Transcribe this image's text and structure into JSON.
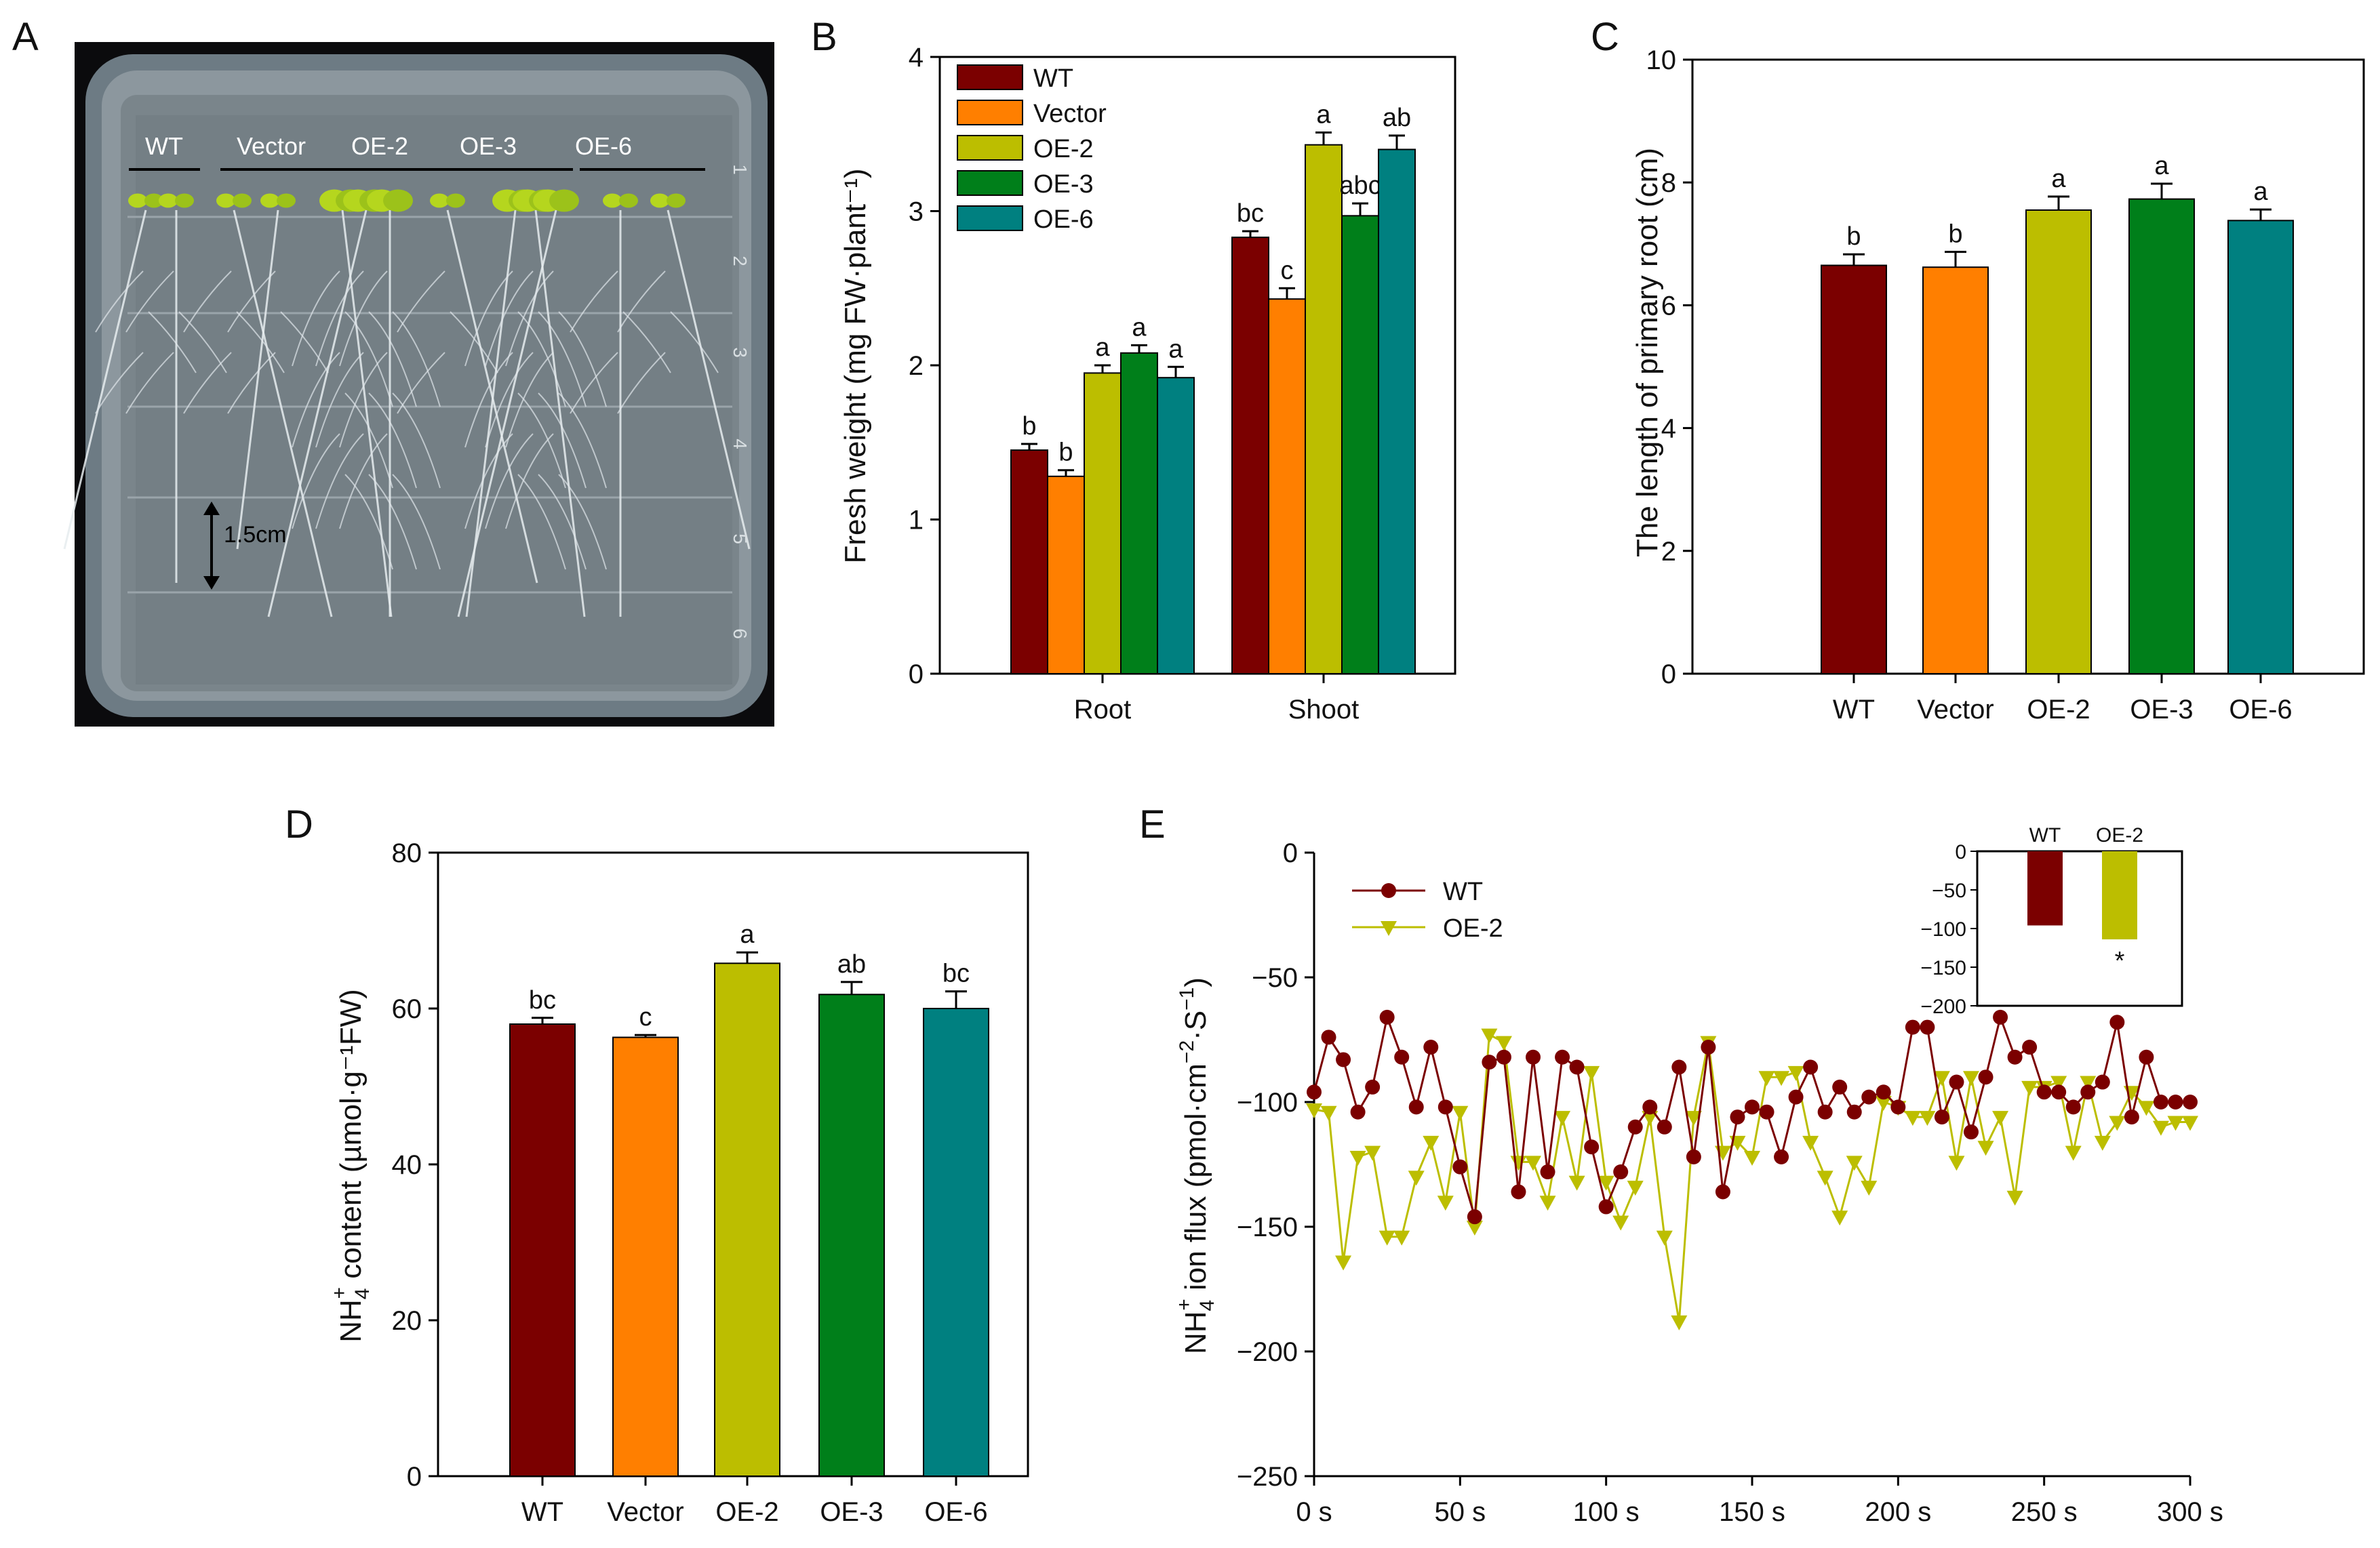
{
  "colors": {
    "WT": "#7b0000",
    "Vector": "#ff7f00",
    "OE-2": "#bcbe00",
    "OE-3": "#007f1a",
    "OE-6": "#008080"
  },
  "panels": {
    "A": "A",
    "B": "B",
    "C": "C",
    "D": "D",
    "E": "E"
  },
  "photo": {
    "labels": [
      "WT",
      "Vector",
      "OE-2",
      "OE-3",
      "OE-6"
    ],
    "ruler_marks": [
      "1",
      "2",
      "3",
      "4",
      "5",
      "6"
    ],
    "scale_label": "1.5cm"
  },
  "chart_data": [
    {
      "id": "B",
      "type": "bar",
      "title": "",
      "xlabel": "",
      "ylabel": "Fresh weight (mg FW·plant⁻¹)",
      "ylim": [
        0,
        4
      ],
      "yticks": [
        0,
        1,
        2,
        3,
        4
      ],
      "categories": [
        "Root",
        "Shoot"
      ],
      "legend": "top-left",
      "series": [
        {
          "name": "WT",
          "values": [
            1.45,
            2.83
          ],
          "errors": [
            0.04,
            0.04
          ],
          "sig": [
            "b",
            "bc"
          ]
        },
        {
          "name": "Vector",
          "values": [
            1.28,
            2.43
          ],
          "errors": [
            0.04,
            0.07
          ],
          "sig": [
            "b",
            "c"
          ]
        },
        {
          "name": "OE-2",
          "values": [
            1.95,
            3.43
          ],
          "errors": [
            0.05,
            0.08
          ],
          "sig": [
            "a",
            "a"
          ]
        },
        {
          "name": "OE-3",
          "values": [
            2.08,
            2.97
          ],
          "errors": [
            0.05,
            0.08
          ],
          "sig": [
            "a",
            "abc"
          ]
        },
        {
          "name": "OE-6",
          "values": [
            1.92,
            3.4
          ],
          "errors": [
            0.07,
            0.09
          ],
          "sig": [
            "a",
            "ab"
          ]
        }
      ]
    },
    {
      "id": "C",
      "type": "bar",
      "title": "",
      "xlabel": "",
      "ylabel": "The length of primary root  (cm)",
      "ylim": [
        0,
        10
      ],
      "yticks": [
        0,
        2,
        4,
        6,
        8,
        10
      ],
      "categories": [
        "WT",
        "Vector",
        "OE-2",
        "OE-3",
        "OE-6"
      ],
      "values": [
        6.65,
        6.62,
        7.55,
        7.73,
        7.38
      ],
      "errors": [
        0.18,
        0.25,
        0.22,
        0.25,
        0.18
      ],
      "sig": [
        "b",
        "b",
        "a",
        "a",
        "a"
      ]
    },
    {
      "id": "D",
      "type": "bar",
      "title": "",
      "xlabel": "",
      "ylabel_main": "NH",
      "ylabel_sub": "4",
      "ylabel_sup": "+",
      "ylabel_rest": " content (µmol·g⁻¹FW)",
      "ylim": [
        0,
        80
      ],
      "yticks": [
        0,
        20,
        40,
        60,
        80
      ],
      "categories": [
        "WT",
        "Vector",
        "OE-2",
        "OE-3",
        "OE-6"
      ],
      "values": [
        58.0,
        56.3,
        65.8,
        61.8,
        60.0
      ],
      "errors": [
        0.8,
        0.3,
        1.4,
        1.6,
        2.2
      ],
      "sig": [
        "bc",
        "c",
        "a",
        "ab",
        "bc"
      ]
    },
    {
      "id": "E",
      "type": "line",
      "title": "",
      "xlabel": "",
      "ylabel_main": "NH",
      "ylabel_sub": "4",
      "ylabel_sup": "+",
      "ylabel_rest": " ion flux (pmol·cm",
      "ylabel_sup2": "−2",
      "ylabel_rest2": "·S",
      "ylabel_sup3": "−1",
      "ylabel_end": ")",
      "ylim": [
        -250,
        0
      ],
      "yticks": [
        0,
        -50,
        -100,
        -150,
        -200,
        -250
      ],
      "xlim": [
        0,
        300
      ],
      "xticks": [
        0,
        50,
        100,
        150,
        200,
        250,
        300
      ],
      "xtick_labels": [
        "0 s",
        "50 s",
        "100 s",
        "150 s",
        "200 s",
        "250 s",
        "300 s"
      ],
      "legend": "top-left",
      "series": [
        {
          "name": "WT",
          "marker": "circle",
          "x": [
            0,
            5,
            10,
            15,
            20,
            25,
            30,
            35,
            40,
            45,
            50,
            55,
            60,
            65,
            70,
            75,
            80,
            85,
            90,
            95,
            100,
            105,
            110,
            115,
            120,
            125,
            130,
            135,
            140,
            145,
            150,
            155,
            160,
            165,
            170,
            175,
            180,
            185,
            190,
            195,
            200,
            205,
            210,
            215,
            220,
            225,
            230,
            235,
            240,
            245,
            250,
            255,
            260,
            265,
            270,
            275,
            280,
            285,
            290,
            295,
            300
          ],
          "y": [
            -96,
            -74,
            -83,
            -104,
            -94,
            -66,
            -82,
            -102,
            -78,
            -102,
            -126,
            -146,
            -84,
            -82,
            -136,
            -82,
            -128,
            -82,
            -86,
            -118,
            -142,
            -128,
            -110,
            -102,
            -110,
            -86,
            -122,
            -78,
            -136,
            -106,
            -102,
            -104,
            -122,
            -98,
            -86,
            -104,
            -94,
            -104,
            -98,
            -96,
            -102,
            -70,
            -70,
            -106,
            -92,
            -112,
            -90,
            -66,
            -82,
            -78,
            -96,
            -96,
            -102,
            -96,
            -92,
            -68,
            -106,
            -82,
            -100,
            -100,
            -100
          ]
        },
        {
          "name": "OE-2",
          "marker": "triangle-down",
          "x": [
            0,
            5,
            10,
            15,
            20,
            25,
            30,
            35,
            40,
            45,
            50,
            55,
            60,
            65,
            70,
            75,
            80,
            85,
            90,
            95,
            100,
            105,
            110,
            115,
            120,
            125,
            130,
            135,
            140,
            145,
            150,
            155,
            160,
            165,
            170,
            175,
            180,
            185,
            190,
            195,
            200,
            205,
            210,
            215,
            220,
            225,
            230,
            235,
            240,
            245,
            250,
            255,
            260,
            265,
            270,
            275,
            280,
            285,
            290,
            295,
            300
          ],
          "y": [
            -103,
            -104,
            -164,
            -122,
            -120,
            -154,
            -154,
            -130,
            -116,
            -140,
            -104,
            -150,
            -73,
            -76,
            -124,
            -124,
            -140,
            -106,
            -132,
            -88,
            -132,
            -148,
            -134,
            -106,
            -154,
            -188,
            -106,
            -76,
            -120,
            -116,
            -122,
            -90,
            -90,
            -88,
            -116,
            -130,
            -146,
            -124,
            -134,
            -100,
            -102,
            -106,
            -106,
            -90,
            -124,
            -90,
            -118,
            -106,
            -138,
            -94,
            -94,
            -92,
            -120,
            -92,
            -116,
            -108,
            -96,
            -102,
            -110,
            -108,
            -108
          ]
        }
      ],
      "inset": {
        "type": "bar",
        "categories": [
          "WT",
          "OE-2"
        ],
        "values": [
          -96,
          -114
        ],
        "ylim": [
          -200,
          0
        ],
        "yticks": [
          0,
          -50,
          -100,
          -150,
          -200
        ],
        "sig": [
          "",
          "*"
        ]
      }
    }
  ]
}
